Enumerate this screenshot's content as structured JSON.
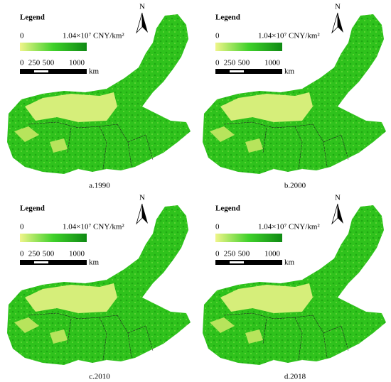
{
  "panels": [
    {
      "legend_title": "Legend",
      "legend_min": "0",
      "legend_max": "1.04×10⁷ CNY/km²",
      "scale_labels": [
        "0",
        "250",
        "500",
        "1000"
      ],
      "scale_unit": "km",
      "north": "N",
      "caption": "a.1990"
    },
    {
      "legend_title": "Legend",
      "legend_min": "0",
      "legend_max": "1.04×10⁷ CNY/km²",
      "scale_labels": [
        "0",
        "250",
        "500",
        "1000"
      ],
      "scale_unit": "km",
      "north": "N",
      "caption": "b.2000"
    },
    {
      "legend_title": "Legend",
      "legend_min": "0",
      "legend_max": "1.04×10⁷ CNY/km²",
      "scale_labels": [
        "0",
        "250",
        "500",
        "1000"
      ],
      "scale_unit": "km",
      "north": "N",
      "caption": "c.2010"
    },
    {
      "legend_title": "Legend",
      "legend_min": "0",
      "legend_max": "1.04×10⁷ CNY/km²",
      "scale_labels": [
        "0",
        "250",
        "500",
        "1000"
      ],
      "scale_unit": "km",
      "north": "N",
      "caption": "d.2018"
    }
  ]
}
